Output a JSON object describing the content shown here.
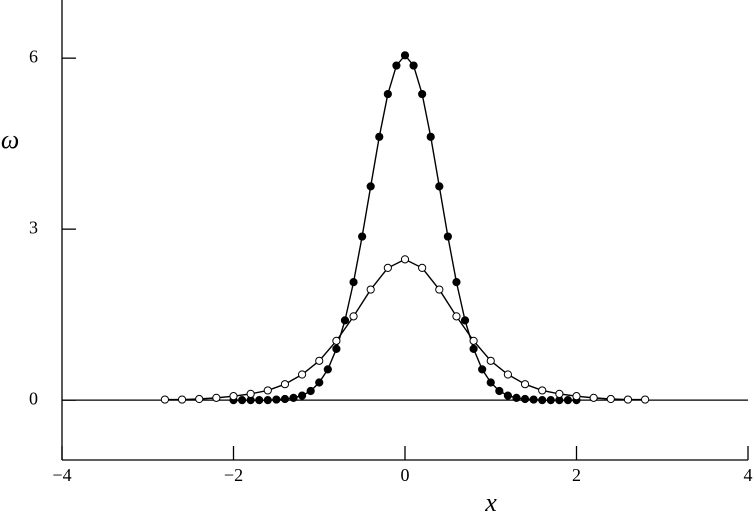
{
  "chart_data": {
    "type": "scatter",
    "xlabel": "x",
    "ylabel": "ω",
    "xlim": [
      -4,
      4
    ],
    "ylim": [
      -1.05,
      7.02
    ],
    "xticks": [
      {
        "value": -4,
        "label": "−4"
      },
      {
        "value": -2,
        "label": "−2"
      },
      0,
      2,
      4
    ],
    "yticks": [
      0,
      3,
      6
    ],
    "grid": false,
    "series": [
      {
        "color": "#000000",
        "marker_fill": "#000000",
        "x": [
          -2.0,
          -1.9,
          -1.8,
          -1.7,
          -1.6,
          -1.5,
          -1.4,
          -1.3,
          -1.2,
          -1.1,
          -1.0,
          -0.9,
          -0.8,
          -0.7,
          -0.6,
          -0.5,
          -0.4,
          -0.3,
          -0.2,
          -0.1,
          0,
          0.1,
          0.2,
          0.3,
          0.4,
          0.5,
          0.6,
          0.7,
          0.8,
          0.9,
          1.0,
          1.1,
          1.2,
          1.3,
          1.4,
          1.5,
          1.6,
          1.7,
          1.8,
          1.9,
          2.0
        ],
        "values": [
          0,
          0,
          0,
          0,
          0,
          0.01,
          0.02,
          0.04,
          0.08,
          0.16,
          0.31,
          0.54,
          0.9,
          1.4,
          2.07,
          2.87,
          3.75,
          4.62,
          5.37,
          5.87,
          6.05,
          5.87,
          5.37,
          4.62,
          3.75,
          2.87,
          2.07,
          1.4,
          0.9,
          0.54,
          0.31,
          0.16,
          0.08,
          0.04,
          0.02,
          0.01,
          0,
          0,
          0,
          0,
          0
        ]
      },
      {
        "color": "#000000",
        "marker_fill": "#ffffff",
        "x": [
          -2.8,
          -2.6,
          -2.4,
          -2.2,
          -2.0,
          -1.8,
          -1.6,
          -1.4,
          -1.2,
          -1.0,
          -0.8,
          -0.6,
          -0.4,
          -0.2,
          0,
          0.2,
          0.4,
          0.6,
          0.8,
          1.0,
          1.2,
          1.4,
          1.6,
          1.8,
          2.0,
          2.2,
          2.4,
          2.6,
          2.8
        ],
        "values": [
          0.01,
          0.01,
          0.02,
          0.04,
          0.07,
          0.11,
          0.17,
          0.28,
          0.45,
          0.69,
          1.04,
          1.47,
          1.94,
          2.32,
          2.47,
          2.32,
          1.94,
          1.47,
          1.04,
          0.69,
          0.45,
          0.28,
          0.17,
          0.11,
          0.07,
          0.04,
          0.02,
          0.01,
          0.01
        ]
      }
    ]
  }
}
